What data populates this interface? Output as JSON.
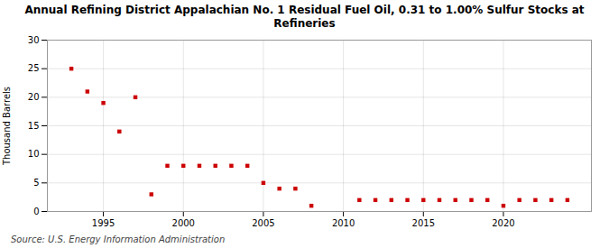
{
  "chart_data": {
    "type": "scatter",
    "title": "Annual Refining District Appalachian No. 1 Residual Fuel Oil, 0.31 to 1.00% Sulfur Stocks at\nRefineries",
    "ylabel": "Thousand Barrels",
    "source": "Source: U.S. Energy Information Administration",
    "x": [
      1993,
      1994,
      1995,
      1996,
      1997,
      1998,
      1999,
      2000,
      2001,
      2002,
      2003,
      2004,
      2005,
      2006,
      2007,
      2008,
      2011,
      2012,
      2013,
      2014,
      2015,
      2016,
      2017,
      2018,
      2019,
      2020,
      2021,
      2022,
      2023,
      2024
    ],
    "values": [
      25,
      21,
      19,
      14,
      20,
      3,
      8,
      8,
      8,
      8,
      8,
      8,
      5,
      4,
      4,
      1,
      2,
      2,
      2,
      2,
      2,
      2,
      2,
      2,
      2,
      1,
      2,
      2,
      2,
      2
    ],
    "color": "#cc0000",
    "marker": "square",
    "xlim": [
      1991.5,
      2025.5
    ],
    "ylim": [
      0,
      30
    ],
    "xticks": [
      1995,
      2000,
      2005,
      2010,
      2015,
      2020
    ],
    "yticks": [
      0,
      5,
      10,
      15,
      20,
      25,
      30
    ],
    "grid": true
  }
}
